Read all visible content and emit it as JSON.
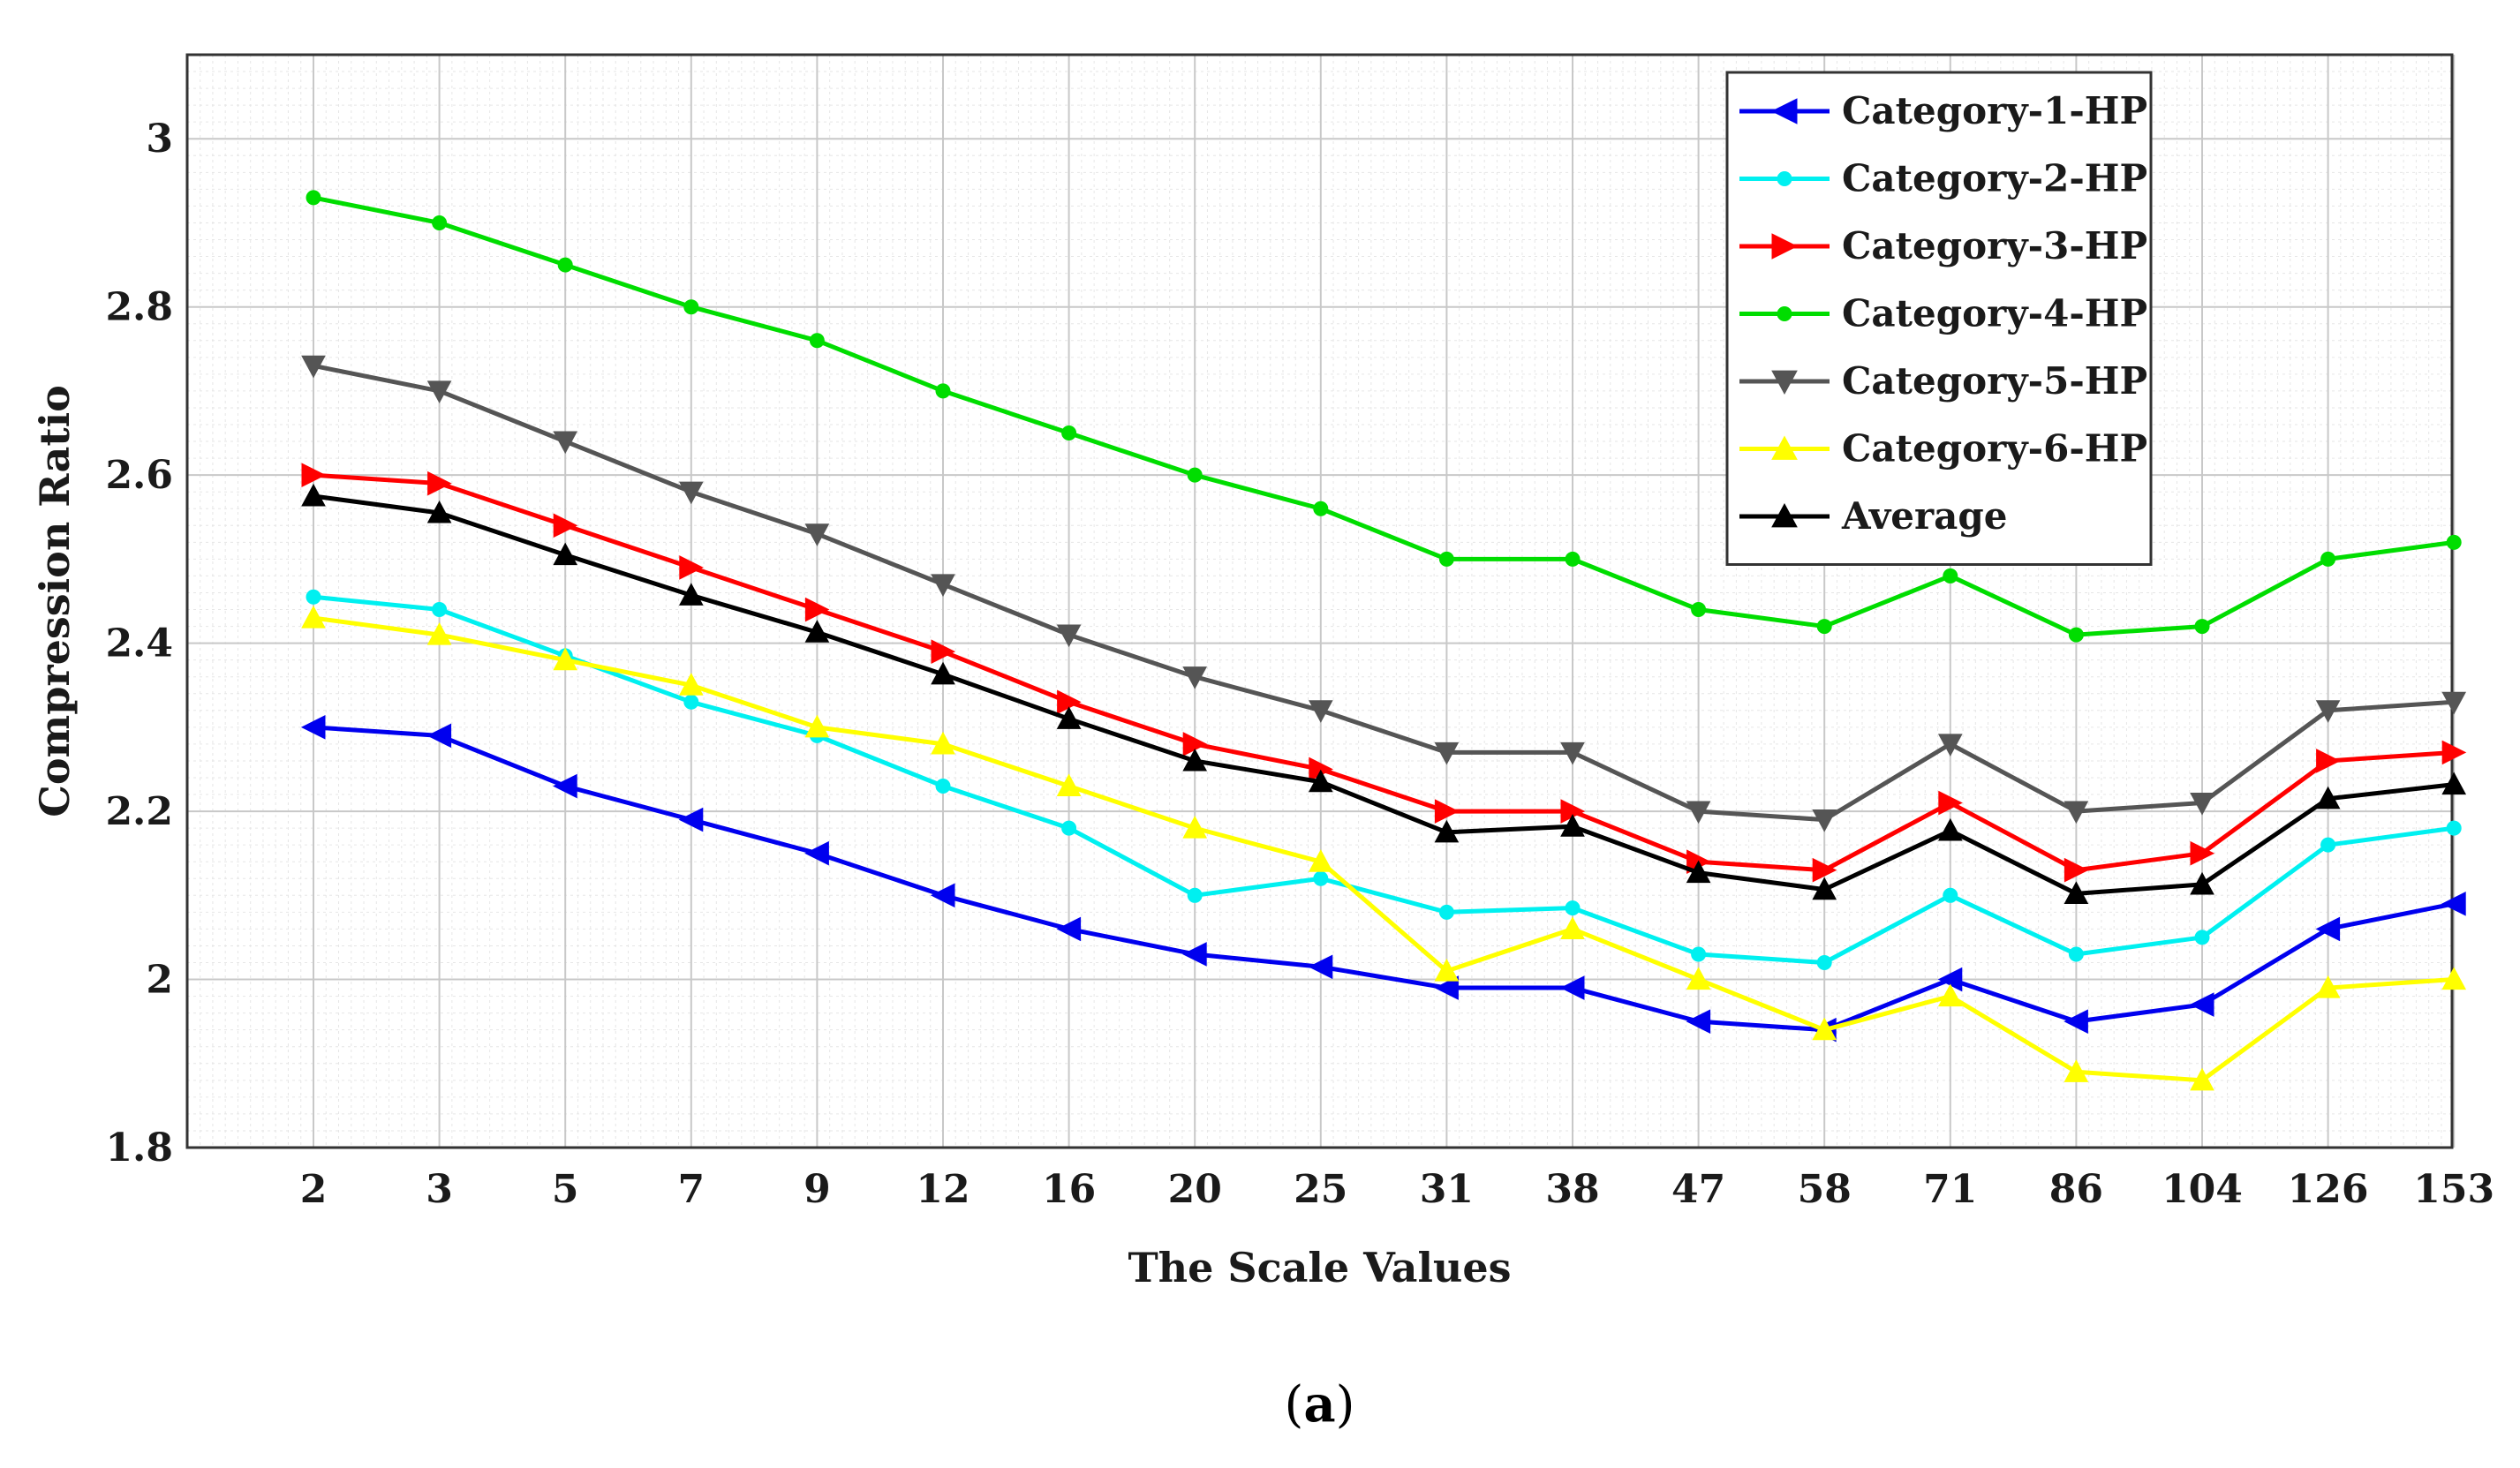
{
  "caption": {
    "open": "(",
    "letter": "a",
    "close": ")"
  },
  "chart_data": {
    "type": "line",
    "xlabel": "The Scale Values",
    "ylabel": "Compression Ratio",
    "categories": [
      "2",
      "3",
      "5",
      "7",
      "9",
      "12",
      "16",
      "20",
      "25",
      "31",
      "38",
      "47",
      "58",
      "71",
      "86",
      "104",
      "126",
      "153"
    ],
    "ylim": [
      1.8,
      3.1
    ],
    "yticks": [
      1.8,
      2,
      2.2,
      2.4,
      2.6,
      2.8,
      3
    ],
    "ytick_labels": [
      "1.8",
      "2",
      "2.2",
      "2.4",
      "2.6",
      "2.8",
      "3"
    ],
    "grid": true,
    "minor_grid": true,
    "legend_position": "top-right",
    "series": [
      {
        "name": "Category-1-HP",
        "color": "#0000ee",
        "marker": "triangle-left",
        "values": [
          2.3,
          2.29,
          2.23,
          2.19,
          2.15,
          2.1,
          2.06,
          2.03,
          2.015,
          1.99,
          1.99,
          1.95,
          1.94,
          2.0,
          1.95,
          1.97,
          2.06,
          2.09
        ]
      },
      {
        "name": "Category-2-HP",
        "color": "#00f0f0",
        "marker": "circle",
        "values": [
          2.455,
          2.44,
          2.385,
          2.33,
          2.29,
          2.23,
          2.18,
          2.1,
          2.12,
          2.08,
          2.085,
          2.03,
          2.02,
          2.1,
          2.03,
          2.05,
          2.16,
          2.18
        ]
      },
      {
        "name": "Category-3-HP",
        "color": "#ff0000",
        "marker": "triangle-right",
        "values": [
          2.6,
          2.59,
          2.54,
          2.49,
          2.44,
          2.39,
          2.33,
          2.28,
          2.25,
          2.2,
          2.2,
          2.14,
          2.13,
          2.21,
          2.13,
          2.15,
          2.26,
          2.27
        ]
      },
      {
        "name": "Category-4-HP",
        "color": "#00dd00",
        "marker": "circle",
        "values": [
          2.93,
          2.9,
          2.85,
          2.8,
          2.76,
          2.7,
          2.65,
          2.6,
          2.56,
          2.5,
          2.5,
          2.44,
          2.42,
          2.48,
          2.41,
          2.42,
          2.5,
          2.52
        ]
      },
      {
        "name": "Category-5-HP",
        "color": "#555555",
        "marker": "triangle-down",
        "values": [
          2.73,
          2.7,
          2.64,
          2.58,
          2.53,
          2.47,
          2.41,
          2.36,
          2.32,
          2.27,
          2.27,
          2.2,
          2.19,
          2.28,
          2.2,
          2.21,
          2.32,
          2.33
        ]
      },
      {
        "name": "Category-6-HP",
        "color": "#ffff00",
        "marker": "triangle-up",
        "values": [
          2.43,
          2.41,
          2.38,
          2.35,
          2.3,
          2.28,
          2.23,
          2.18,
          2.14,
          2.01,
          2.06,
          2.0,
          1.94,
          1.98,
          1.89,
          1.88,
          1.99,
          2.0
        ]
      },
      {
        "name": "Average",
        "color": "#000000",
        "marker": "triangle-up",
        "values": [
          2.575,
          2.555,
          2.505,
          2.457,
          2.413,
          2.363,
          2.31,
          2.26,
          2.235,
          2.175,
          2.182,
          2.127,
          2.107,
          2.177,
          2.102,
          2.113,
          2.215,
          2.232
        ]
      }
    ]
  }
}
